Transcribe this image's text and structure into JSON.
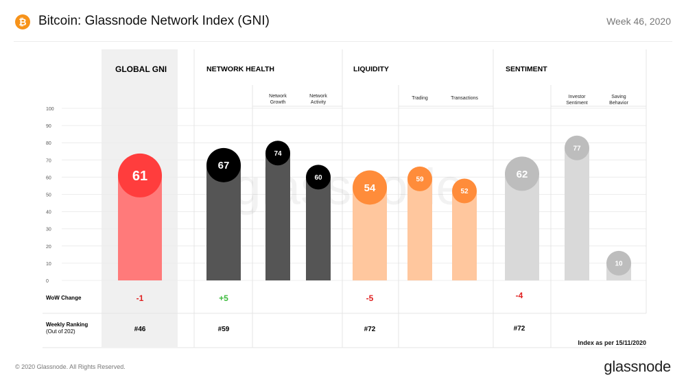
{
  "header": {
    "logo_glyph": "₿",
    "title": "Bitcoin: Glassnode Network Index (GNI)",
    "week": "Week 46, 2020"
  },
  "footer": {
    "copyright": "© 2020 Glassnode. All Rights Reserved.",
    "logo": "glassnode",
    "index_note": "Index as per 15/11/2020"
  },
  "watermark": "glassnode",
  "colors": {
    "global": "#ff3d3d",
    "global_bar": "#ff7a7a",
    "network": "#000000",
    "network_bar": "#555555",
    "liquidity": "#ff8c3a",
    "liquidity_bar": "#ffc79e",
    "sentiment": "#bdbdbd",
    "sentiment_bar": "#d9d9d9",
    "positive": "#3dbb3d",
    "negative": "#e02020",
    "highlight_bg": "#f0f0f0"
  },
  "row_labels": {
    "wow": "WoW  Change",
    "ranking_line1": "Weekly Ranking",
    "ranking_line2": "(Out of 202)"
  },
  "chart_data": {
    "type": "bar",
    "ylim": [
      0,
      100
    ],
    "y_ticks": [
      "0",
      "10",
      "20",
      "30",
      "40",
      "50",
      "60",
      "70",
      "80",
      "90",
      "100"
    ],
    "groups": [
      {
        "title": "GLOBAL GNI",
        "main": {
          "value": 61,
          "label": "61",
          "color_key": "global"
        },
        "subs": [],
        "wow": "-1",
        "wow_sign": "negative",
        "rank": "#46"
      },
      {
        "title": "NETWORK HEALTH",
        "main": {
          "value": 67,
          "label": "67",
          "color_key": "network"
        },
        "subs": [
          {
            "name_lines": [
              "Network",
              "Growth"
            ],
            "value": 74,
            "label": "74"
          },
          {
            "name_lines": [
              "Network",
              "Activity"
            ],
            "value": 60,
            "label": "60"
          }
        ],
        "wow": "+5",
        "wow_sign": "positive",
        "rank": "#59"
      },
      {
        "title": "LIQUIDITY",
        "main": {
          "value": 54,
          "label": "54",
          "color_key": "liquidity"
        },
        "subs": [
          {
            "name_lines": [
              "Trading"
            ],
            "value": 59,
            "label": "59"
          },
          {
            "name_lines": [
              "Transactions"
            ],
            "value": 52,
            "label": "52"
          }
        ],
        "wow": "-5",
        "wow_sign": "negative",
        "rank": "#72"
      },
      {
        "title": "SENTIMENT",
        "main": {
          "value": 62,
          "label": "62",
          "color_key": "sentiment"
        },
        "subs": [
          {
            "name_lines": [
              "Investor",
              "Sentiment"
            ],
            "value": 77,
            "label": "77"
          },
          {
            "name_lines": [
              "Saving",
              "Behavior"
            ],
            "value": 10,
            "label": "10"
          }
        ],
        "wow": "-4",
        "wow_sign": "negative",
        "rank": "#72"
      }
    ]
  }
}
